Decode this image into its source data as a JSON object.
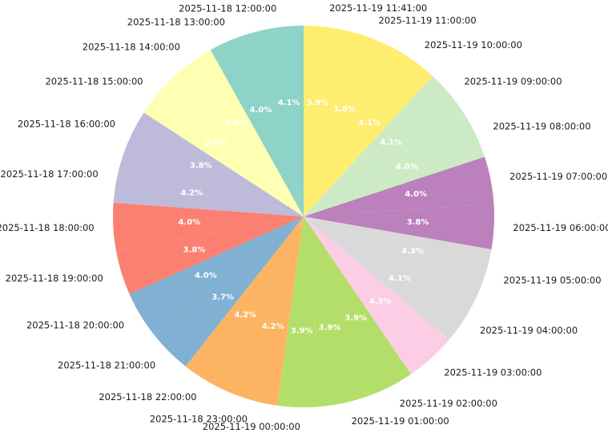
{
  "chart_data": {
    "type": "pie",
    "start_angle_deg": 90,
    "direction": "clockwise",
    "slices": [
      {
        "label": "2025-11-19 11:41:00",
        "value": 3.9,
        "value_label": "3.9%",
        "color": "#ffed6f"
      },
      {
        "label": "2025-11-19 11:00:00",
        "value": 3.8,
        "value_label": "3.8%",
        "color": "#ffed6f"
      },
      {
        "label": "2025-11-19 10:00:00",
        "value": 4.1,
        "value_label": "4.1%",
        "color": "#ffed6f"
      },
      {
        "label": "2025-11-19 09:00:00",
        "value": 4.1,
        "value_label": "4.1%",
        "color": "#ccebc5"
      },
      {
        "label": "2025-11-19 08:00:00",
        "value": 4.0,
        "value_label": "4.0%",
        "color": "#ccebc5"
      },
      {
        "label": "2025-11-19 07:00:00",
        "value": 4.0,
        "value_label": "4.0%",
        "color": "#bc80bd"
      },
      {
        "label": "2025-11-19 06:00:00",
        "value": 3.8,
        "value_label": "3.8%",
        "color": "#bc80bd"
      },
      {
        "label": "2025-11-19 05:00:00",
        "value": 4.3,
        "value_label": "4.3%",
        "color": "#d9d9d9"
      },
      {
        "label": "2025-11-19 04:00:00",
        "value": 4.1,
        "value_label": "4.1%",
        "color": "#d9d9d9"
      },
      {
        "label": "2025-11-19 03:00:00",
        "value": 4.3,
        "value_label": "4.3%",
        "color": "#fccde5"
      },
      {
        "label": "2025-11-19 02:00:00",
        "value": 3.9,
        "value_label": "3.9%",
        "color": "#b3de69"
      },
      {
        "label": "2025-11-19 01:00:00",
        "value": 3.9,
        "value_label": "3.9%",
        "color": "#b3de69"
      },
      {
        "label": "2025-11-19 00:00:00",
        "value": 3.9,
        "value_label": "3.9%",
        "color": "#b3de69"
      },
      {
        "label": "2025-11-18 23:00:00",
        "value": 4.2,
        "value_label": "4.2%",
        "color": "#fdb462"
      },
      {
        "label": "2025-11-18 22:00:00",
        "value": 4.2,
        "value_label": "4.2%",
        "color": "#fdb462"
      },
      {
        "label": "2025-11-18 21:00:00",
        "value": 3.7,
        "value_label": "3.7%",
        "color": "#80b1d3"
      },
      {
        "label": "2025-11-18 20:00:00",
        "value": 4.0,
        "value_label": "4.0%",
        "color": "#80b1d3"
      },
      {
        "label": "2025-11-18 19:00:00",
        "value": 3.8,
        "value_label": "3.8%",
        "color": "#fb8072"
      },
      {
        "label": "2025-11-18 18:00:00",
        "value": 4.0,
        "value_label": "4.0%",
        "color": "#fb8072"
      },
      {
        "label": "2025-11-18 17:00:00",
        "value": 4.2,
        "value_label": "4.2%",
        "color": "#bebada"
      },
      {
        "label": "2025-11-18 16:00:00",
        "value": 3.8,
        "value_label": "3.8%",
        "color": "#bebada"
      },
      {
        "label": "2025-11-18 15:00:00",
        "value": 3.9,
        "value_label": "3.9%",
        "color": "#ffffb3"
      },
      {
        "label": "2025-11-18 14:00:00",
        "value": 3.8,
        "value_label": "3.8%",
        "color": "#ffffb3"
      },
      {
        "label": "2025-11-18 13:00:00",
        "value": 4.0,
        "value_label": "4.0%",
        "color": "#8dd3c7"
      },
      {
        "label": "2025-11-18 12:00:00",
        "value": 4.1,
        "value_label": "4.1%",
        "color": "#8dd3c7"
      }
    ]
  }
}
